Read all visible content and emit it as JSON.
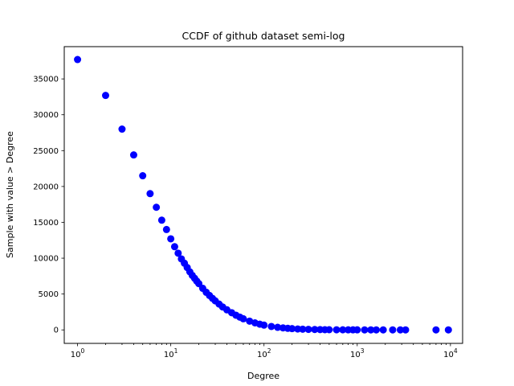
{
  "chart_data": {
    "type": "scatter",
    "title": "CCDF of github dataset semi-log",
    "xlabel": "Degree",
    "ylabel": "Sample with value > Degree",
    "xscale": "log",
    "xlim": [
      0.72,
      13500
    ],
    "ylim": [
      -1880,
      39500
    ],
    "grid": false,
    "marker_color": "#0000ff",
    "x_ticks": [
      {
        "value": 1,
        "base": "10",
        "exp": "0"
      },
      {
        "value": 10,
        "base": "10",
        "exp": "1"
      },
      {
        "value": 100,
        "base": "10",
        "exp": "2"
      },
      {
        "value": 1000,
        "base": "10",
        "exp": "3"
      },
      {
        "value": 10000,
        "base": "10",
        "exp": "4"
      }
    ],
    "y_ticks": [
      0,
      5000,
      10000,
      15000,
      20000,
      25000,
      30000,
      35000
    ],
    "y_tick_labels": [
      "0",
      "5000",
      "10000",
      "15000",
      "20000",
      "25000",
      "30000",
      "35000"
    ],
    "points": [
      [
        1,
        37700
      ],
      [
        2,
        32700
      ],
      [
        3,
        28000
      ],
      [
        4,
        24400
      ],
      [
        5,
        21500
      ],
      [
        6,
        19000
      ],
      [
        7,
        17100
      ],
      [
        8,
        15300
      ],
      [
        9,
        14000
      ],
      [
        10,
        12700
      ],
      [
        11,
        11600
      ],
      [
        12,
        10700
      ],
      [
        13,
        9900
      ],
      [
        14,
        9300
      ],
      [
        15,
        8700
      ],
      [
        16,
        8100
      ],
      [
        17,
        7600
      ],
      [
        18,
        7200
      ],
      [
        19,
        6800
      ],
      [
        20,
        6450
      ],
      [
        22,
        5800
      ],
      [
        24,
        5250
      ],
      [
        26,
        4800
      ],
      [
        28,
        4400
      ],
      [
        30,
        4050
      ],
      [
        33,
        3600
      ],
      [
        36,
        3200
      ],
      [
        40,
        2800
      ],
      [
        45,
        2400
      ],
      [
        50,
        2050
      ],
      [
        55,
        1780
      ],
      [
        60,
        1550
      ],
      [
        70,
        1220
      ],
      [
        80,
        980
      ],
      [
        90,
        800
      ],
      [
        100,
        670
      ],
      [
        120,
        480
      ],
      [
        140,
        360
      ],
      [
        160,
        280
      ],
      [
        180,
        220
      ],
      [
        200,
        175
      ],
      [
        230,
        130
      ],
      [
        260,
        100
      ],
      [
        300,
        75
      ],
      [
        350,
        55
      ],
      [
        400,
        42
      ],
      [
        450,
        33
      ],
      [
        500,
        26
      ],
      [
        600,
        18
      ],
      [
        700,
        13
      ],
      [
        800,
        10
      ],
      [
        900,
        8
      ],
      [
        1000,
        6
      ],
      [
        1200,
        5
      ],
      [
        1400,
        4
      ],
      [
        1600,
        3
      ],
      [
        1900,
        3
      ],
      [
        2400,
        2
      ],
      [
        2900,
        2
      ],
      [
        3300,
        1
      ],
      [
        7000,
        1
      ],
      [
        9500,
        0
      ]
    ]
  }
}
